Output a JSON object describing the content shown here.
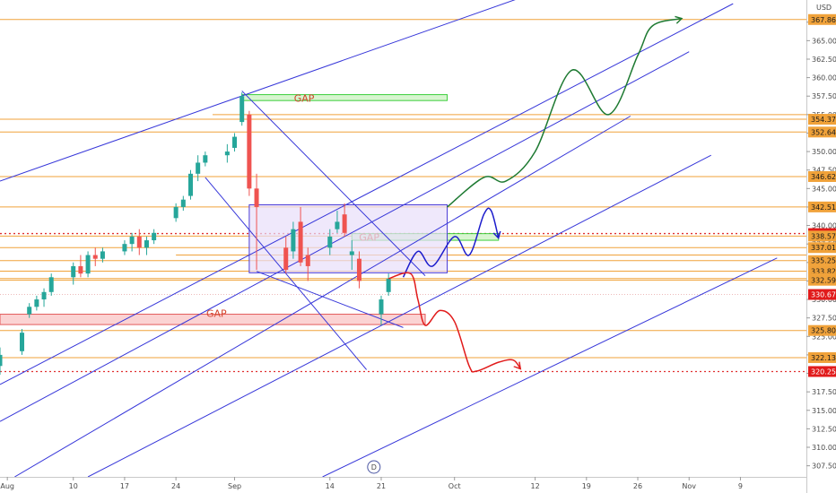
{
  "chart_data": {
    "type": "candlestick",
    "title": "",
    "currency": "USD",
    "y_axis": {
      "range": [
        306.0,
        370.5
      ],
      "ticks": [
        "307.50",
        "310.00",
        "312.50",
        "315.00",
        "317.50",
        "320.00",
        "322.50",
        "325.00",
        "327.50",
        "330.00",
        "332.50",
        "335.00",
        "337.50",
        "340.00",
        "342.50",
        "345.00",
        "347.50",
        "350.00",
        "352.50",
        "355.00",
        "357.50",
        "360.00",
        "362.50",
        "365.00",
        "367.50"
      ]
    },
    "x_axis": {
      "range": [
        "2020-07-31",
        "2020-11-18"
      ],
      "ticks": [
        {
          "date": "2020-08-01",
          "label": "Aug"
        },
        {
          "date": "2020-08-10",
          "label": "10"
        },
        {
          "date": "2020-08-17",
          "label": "17"
        },
        {
          "date": "2020-08-24",
          "label": "24"
        },
        {
          "date": "2020-09-01",
          "label": "Sep"
        },
        {
          "date": "2020-09-14",
          "label": "14"
        },
        {
          "date": "2020-09-21",
          "label": "21"
        },
        {
          "date": "2020-10-01",
          "label": "Oct"
        },
        {
          "date": "2020-10-12",
          "label": "12"
        },
        {
          "date": "2020-10-19",
          "label": "19"
        },
        {
          "date": "2020-10-26",
          "label": "26"
        },
        {
          "date": "2020-11-02",
          "label": "Nov"
        },
        {
          "date": "2020-11-09",
          "label": "9"
        }
      ]
    },
    "price_levels": [
      {
        "value": 367.86,
        "label": "367.86",
        "style": "orange"
      },
      {
        "value": 354.37,
        "label": "354.37",
        "style": "orange"
      },
      {
        "value": 352.64,
        "label": "352.64",
        "style": "orange"
      },
      {
        "value": 346.62,
        "label": "346.62",
        "style": "orange"
      },
      {
        "value": 342.51,
        "label": "342.51",
        "style": "orange"
      },
      {
        "value": 338.91,
        "label": "338.91",
        "style": "red-dotted"
      },
      {
        "value": 338.57,
        "label": "338.57",
        "style": "orange"
      },
      {
        "value": 337.01,
        "label": "337.01",
        "style": "orange"
      },
      {
        "value": 335.25,
        "label": "335.25",
        "style": "orange"
      },
      {
        "value": 333.82,
        "label": "333.82",
        "style": "orange"
      },
      {
        "value": 332.83,
        "label": "332.83",
        "style": "orange"
      },
      {
        "value": 332.59,
        "label": "332.59",
        "style": "orange"
      },
      {
        "value": 330.67,
        "label": "330.67",
        "style": "red-solid"
      },
      {
        "value": 325.8,
        "label": "325.80",
        "style": "orange"
      },
      {
        "value": 322.13,
        "label": "322.13",
        "style": "orange"
      },
      {
        "value": 320.25,
        "label": "320.25",
        "style": "red-dotted"
      }
    ],
    "gaps": [
      {
        "label": "GAP",
        "date_from": "2020-09-02",
        "date_to": "2020-09-30",
        "price_from": 356.9,
        "price_to": 357.7,
        "color": "green"
      },
      {
        "label": "GAP",
        "date_from": "2020-09-17",
        "date_to": "2020-10-07",
        "price_from": 338.0,
        "price_to": 338.9,
        "color": "green"
      },
      {
        "label": "GAP",
        "date_from": "2020-07-31",
        "date_to": "2020-09-27",
        "price_from": 326.6,
        "price_to": 328.0,
        "color": "red"
      }
    ],
    "consolidation_box": {
      "date_from": "2020-09-03",
      "date_to": "2020-09-30",
      "price_from": 333.6,
      "price_to": 342.8
    },
    "candles": [
      {
        "date": "2020-07-31",
        "o": 321.0,
        "h": 323.5,
        "l": 319.8,
        "c": 322.5
      },
      {
        "date": "2020-08-03",
        "o": 323.0,
        "h": 326.0,
        "l": 322.5,
        "c": 325.5
      },
      {
        "date": "2020-08-04",
        "o": 328.0,
        "h": 329.5,
        "l": 327.5,
        "c": 329.0
      },
      {
        "date": "2020-08-05",
        "o": 329.0,
        "h": 330.5,
        "l": 328.5,
        "c": 330.0
      },
      {
        "date": "2020-08-06",
        "o": 330.0,
        "h": 331.5,
        "l": 329.0,
        "c": 331.0
      },
      {
        "date": "2020-08-07",
        "o": 331.0,
        "h": 333.5,
        "l": 330.5,
        "c": 333.0
      },
      {
        "date": "2020-08-10",
        "o": 333.0,
        "h": 335.0,
        "l": 332.0,
        "c": 334.5
      },
      {
        "date": "2020-08-11",
        "o": 334.5,
        "h": 336.0,
        "l": 333.0,
        "c": 333.5
      },
      {
        "date": "2020-08-12",
        "o": 333.5,
        "h": 336.5,
        "l": 333.0,
        "c": 336.0
      },
      {
        "date": "2020-08-13",
        "o": 336.0,
        "h": 337.0,
        "l": 334.5,
        "c": 335.5
      },
      {
        "date": "2020-08-14",
        "o": 335.5,
        "h": 337.0,
        "l": 335.0,
        "c": 336.5
      },
      {
        "date": "2020-08-17",
        "o": 336.5,
        "h": 338.0,
        "l": 336.0,
        "c": 337.5
      },
      {
        "date": "2020-08-18",
        "o": 337.5,
        "h": 339.0,
        "l": 336.5,
        "c": 338.5
      },
      {
        "date": "2020-08-19",
        "o": 338.5,
        "h": 339.5,
        "l": 336.0,
        "c": 337.0
      },
      {
        "date": "2020-08-20",
        "o": 337.0,
        "h": 338.5,
        "l": 336.0,
        "c": 338.0
      },
      {
        "date": "2020-08-21",
        "o": 338.0,
        "h": 339.5,
        "l": 337.5,
        "c": 339.0
      },
      {
        "date": "2020-08-24",
        "o": 341.0,
        "h": 343.0,
        "l": 340.5,
        "c": 342.5
      },
      {
        "date": "2020-08-25",
        "o": 342.5,
        "h": 344.0,
        "l": 342.0,
        "c": 343.5
      },
      {
        "date": "2020-08-26",
        "o": 344.0,
        "h": 347.5,
        "l": 343.5,
        "c": 347.0
      },
      {
        "date": "2020-08-27",
        "o": 347.0,
        "h": 349.5,
        "l": 346.0,
        "c": 348.5
      },
      {
        "date": "2020-08-28",
        "o": 348.5,
        "h": 350.0,
        "l": 348.0,
        "c": 349.5
      },
      {
        "date": "2020-08-31",
        "o": 349.5,
        "h": 351.0,
        "l": 348.5,
        "c": 350.0
      },
      {
        "date": "2020-09-01",
        "o": 350.5,
        "h": 352.5,
        "l": 350.0,
        "c": 352.0
      },
      {
        "date": "2020-09-02",
        "o": 354.0,
        "h": 358.0,
        "l": 353.5,
        "c": 357.5
      },
      {
        "date": "2020-09-03",
        "o": 355.0,
        "h": 355.5,
        "l": 344.0,
        "c": 345.0
      },
      {
        "date": "2020-09-04",
        "o": 345.0,
        "h": 347.0,
        "l": 334.0,
        "c": 342.5
      },
      {
        "date": "2020-09-08",
        "o": 337.0,
        "h": 338.5,
        "l": 333.5,
        "c": 334.0
      },
      {
        "date": "2020-09-09",
        "o": 336.5,
        "h": 340.5,
        "l": 335.5,
        "c": 339.5
      },
      {
        "date": "2020-09-10",
        "o": 340.5,
        "h": 342.5,
        "l": 334.5,
        "c": 335.0
      },
      {
        "date": "2020-09-11",
        "o": 336.0,
        "h": 337.0,
        "l": 332.5,
        "c": 334.5
      },
      {
        "date": "2020-09-14",
        "o": 337.0,
        "h": 339.5,
        "l": 336.0,
        "c": 338.5
      },
      {
        "date": "2020-09-15",
        "o": 339.5,
        "h": 342.0,
        "l": 339.0,
        "c": 340.5
      },
      {
        "date": "2020-09-16",
        "o": 341.5,
        "h": 343.0,
        "l": 338.5,
        "c": 339.0
      },
      {
        "date": "2020-09-17",
        "o": 336.0,
        "h": 338.0,
        "l": 334.0,
        "c": 336.5
      },
      {
        "date": "2020-09-18",
        "o": 335.5,
        "h": 336.5,
        "l": 331.5,
        "c": 332.5
      },
      {
        "date": "2020-09-21",
        "o": 328.0,
        "h": 330.5,
        "l": 326.5,
        "c": 330.0
      },
      {
        "date": "2020-09-22",
        "o": 331.0,
        "h": 333.5,
        "l": 330.5,
        "c": 332.8
      }
    ],
    "channel_lines": [
      {
        "from": {
          "date": "2020-07-31",
          "price": 346.0
        },
        "to": {
          "date": "2020-10-12",
          "price": 371.5
        }
      },
      {
        "from": {
          "date": "2020-07-31",
          "price": 318.5
        },
        "to": {
          "date": "2020-11-08",
          "price": 370.0
        }
      },
      {
        "from": {
          "date": "2020-07-31",
          "price": 313.5
        },
        "to": {
          "date": "2020-11-02",
          "price": 363.5
        }
      },
      {
        "from": {
          "date": "2020-08-02",
          "price": 306.0
        },
        "to": {
          "date": "2020-10-25",
          "price": 354.8
        }
      },
      {
        "from": {
          "date": "2020-08-12",
          "price": 306.0
        },
        "to": {
          "date": "2020-11-05",
          "price": 349.5
        }
      },
      {
        "from": {
          "date": "2020-09-13",
          "price": 306.0
        },
        "to": {
          "date": "2020-11-14",
          "price": 335.6
        }
      }
    ],
    "wedge_lines": [
      {
        "from": {
          "date": "2020-09-02",
          "price": 358.2
        },
        "to": {
          "date": "2020-09-27",
          "price": 333.2
        }
      },
      {
        "from": {
          "date": "2020-08-28",
          "price": 346.5
        },
        "to": {
          "date": "2020-09-19",
          "price": 320.5
        }
      },
      {
        "from": {
          "date": "2020-09-04",
          "price": 333.8
        },
        "to": {
          "date": "2020-09-24",
          "price": 326.2
        }
      }
    ],
    "projections": [
      {
        "color": "green",
        "points": [
          {
            "date": "2020-09-30",
            "price": 342.5
          },
          {
            "date": "2020-10-05",
            "price": 346.5
          },
          {
            "date": "2020-10-08",
            "price": 346.0
          },
          {
            "date": "2020-10-12",
            "price": 350.0
          },
          {
            "date": "2020-10-17",
            "price": 361.0
          },
          {
            "date": "2020-10-22",
            "price": 355.0
          },
          {
            "date": "2020-10-26",
            "price": 363.0
          },
          {
            "date": "2020-10-28",
            "price": 367.0
          },
          {
            "date": "2020-11-01",
            "price": 368.0
          }
        ]
      },
      {
        "color": "blue",
        "points": [
          {
            "date": "2020-09-24",
            "price": 333.0
          },
          {
            "date": "2020-09-26",
            "price": 336.5
          },
          {
            "date": "2020-09-28",
            "price": 334.5
          },
          {
            "date": "2020-10-01",
            "price": 338.5
          },
          {
            "date": "2020-10-03",
            "price": 336.0
          },
          {
            "date": "2020-10-05",
            "price": 341.5
          },
          {
            "date": "2020-10-06",
            "price": 342.0
          },
          {
            "date": "2020-10-07",
            "price": 338.3
          }
        ]
      },
      {
        "color": "red",
        "points": [
          {
            "date": "2020-09-22",
            "price": 332.8
          },
          {
            "date": "2020-09-25",
            "price": 333.5
          },
          {
            "date": "2020-09-26",
            "price": 330.0
          },
          {
            "date": "2020-09-27",
            "price": 326.5
          },
          {
            "date": "2020-09-29",
            "price": 328.5
          },
          {
            "date": "2020-10-01",
            "price": 327.0
          },
          {
            "date": "2020-10-03",
            "price": 321.0
          },
          {
            "date": "2020-10-04",
            "price": 320.3
          },
          {
            "date": "2020-10-07",
            "price": 321.5
          },
          {
            "date": "2020-10-09",
            "price": 321.8
          },
          {
            "date": "2020-10-10",
            "price": 320.6
          }
        ]
      }
    ],
    "event_marker": {
      "date": "2020-09-20",
      "label": "D"
    }
  },
  "colors": {
    "up": "#26a69a",
    "down": "#ef5350",
    "channel": "#3636d9",
    "level": "#f0a23a",
    "dotted": "#e03030",
    "badge_orange": "#f0a23a",
    "badge_red": "#e11b1b",
    "green_path": "#1e7a32",
    "blue_path": "#1c1ccc",
    "red_path": "#e11b1b",
    "box_fill": "#e8defa",
    "box_stroke": "#4a3ad6",
    "gap_red_fill": "#fbd3d3",
    "gap_green_fill": "#d8f5d0"
  }
}
